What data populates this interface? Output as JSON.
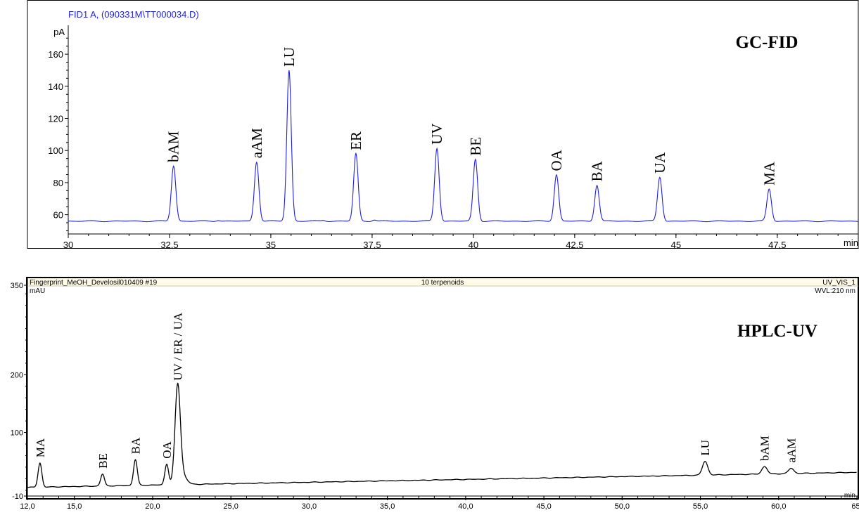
{
  "colors": {
    "gc_trace": "#1f1fe0",
    "hplc_trace": "#000000",
    "hplc_header_bg": "#fffbe8"
  },
  "chart_data": [
    {
      "type": "line",
      "header": "FID1 A,  (090331M\\TT000034.D)",
      "badge": "GC-FID",
      "xunit": "min",
      "yunit": "pA",
      "xlim": [
        30,
        49.5
      ],
      "ylim": [
        48,
        178
      ],
      "xticks": [
        30,
        32.5,
        35,
        37.5,
        40,
        42.5,
        45,
        47.5
      ],
      "xtick_labels": [
        "30",
        "32.5",
        "35",
        "37.5",
        "40",
        "42.5",
        "45",
        "47.5"
      ],
      "yticks": [
        60,
        80,
        100,
        120,
        140,
        160
      ],
      "ytick_labels": [
        "60",
        "80",
        "100",
        "120",
        "140",
        "160"
      ],
      "baseline": 56,
      "peaks": [
        {
          "name": "bAM",
          "x": 32.6,
          "y": 90.5
        },
        {
          "name": "aAM",
          "x": 34.65,
          "y": 93
        },
        {
          "name": "LU",
          "x": 35.45,
          "y": 150
        },
        {
          "name": "ER",
          "x": 37.1,
          "y": 98
        },
        {
          "name": "UV",
          "x": 39.1,
          "y": 101.5
        },
        {
          "name": "BE",
          "x": 40.05,
          "y": 94.5
        },
        {
          "name": "OA",
          "x": 42.05,
          "y": 85
        },
        {
          "name": "BA",
          "x": 43.05,
          "y": 78.5
        },
        {
          "name": "UA",
          "x": 44.6,
          "y": 83.5
        },
        {
          "name": "MA",
          "x": 47.3,
          "y": 76
        }
      ]
    },
    {
      "type": "line",
      "header_left": "Fingerprint_MeOH_Develosil010409 #19",
      "header_center": "10 terpenoids",
      "header_right": "UV_VIS_1",
      "wvl": "WVL:210 nm",
      "badge": "HPLC-UV",
      "xunit": "min",
      "yunit": "mAU",
      "xlim": [
        12.0,
        65.0
      ],
      "ylim": [
        -10,
        350
      ],
      "xticks": [
        12.0,
        15.0,
        20.0,
        25.0,
        30.0,
        35.0,
        40.0,
        45.0,
        50.0,
        55.0,
        60.0,
        65.0
      ],
      "xtick_labels": [
        "12,0",
        "15,0",
        "20,0",
        "25,0",
        "30,0",
        "35,0",
        "40,0",
        "45,0",
        "50,0",
        "55,0",
        "60,0",
        "65,"
      ],
      "yticks": [
        -10,
        100,
        200,
        350
      ],
      "ytick_labels": [
        "-10",
        "100",
        "200",
        "350"
      ],
      "baseline_start": 5,
      "baseline_end": 31,
      "peaks": [
        {
          "name": "MA",
          "x": 12.8,
          "y": 47
        },
        {
          "name": "BE",
          "x": 16.8,
          "y": 28
        },
        {
          "name": "BA",
          "x": 18.9,
          "y": 53
        },
        {
          "name": "OA",
          "x": 20.9,
          "y": 45
        },
        {
          "name": "UV / ER / UA",
          "x": 21.6,
          "y": 180
        },
        {
          "name": "LU",
          "x": 55.3,
          "y": 50
        },
        {
          "name": "bAM",
          "x": 59.1,
          "y": 41
        },
        {
          "name": "aAM",
          "x": 60.8,
          "y": 38
        }
      ]
    }
  ]
}
